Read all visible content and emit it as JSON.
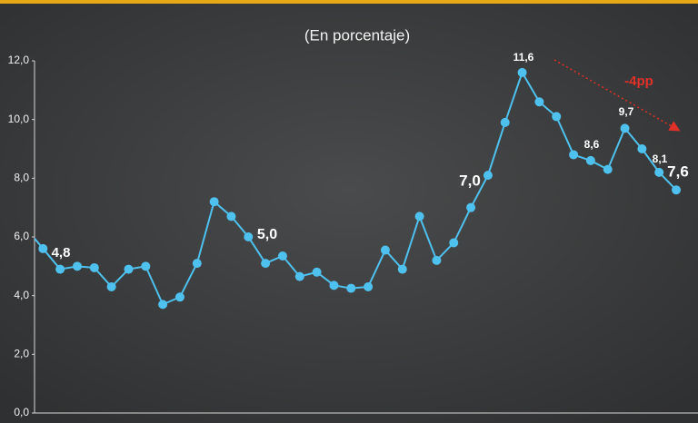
{
  "chart_data": {
    "type": "line",
    "subtitle": "(En porcentaje)",
    "categories": [
      null,
      null,
      null,
      null,
      null,
      null,
      null,
      null,
      null,
      null,
      null,
      null,
      null,
      null,
      null,
      null,
      null,
      null,
      null,
      null,
      null,
      null,
      null,
      null,
      null,
      null,
      null,
      null,
      null,
      null,
      null,
      null,
      null,
      null,
      null,
      null,
      null,
      null,
      null
    ],
    "series": [
      {
        "name": null,
        "color": "#4ec1ee",
        "values": [
          6.3,
          5.6,
          4.9,
          5.0,
          4.95,
          4.3,
          4.9,
          5.0,
          3.7,
          3.95,
          5.1,
          7.2,
          6.7,
          6.0,
          5.1,
          5.35,
          4.65,
          4.8,
          4.35,
          4.25,
          4.3,
          5.55,
          4.9,
          6.7,
          5.2,
          5.8,
          7.0,
          8.1,
          9.9,
          11.6,
          10.6,
          10.1,
          8.8,
          8.6,
          8.3,
          9.7,
          9.0,
          8.2,
          7.6
        ]
      }
    ],
    "ylim": [
      0,
      12
    ],
    "yticks": [
      {
        "value": 0,
        "label": "0,0"
      },
      {
        "value": 2,
        "label": "2,0"
      },
      {
        "value": 4,
        "label": "4,0"
      },
      {
        "value": 6,
        "label": "6,0"
      },
      {
        "value": 8,
        "label": "8,0"
      },
      {
        "value": 10,
        "label": "10,0"
      },
      {
        "value": 12,
        "label": "12,0"
      }
    ],
    "annotations": [
      {
        "text": "4,8"
      },
      {
        "text": "5,0"
      },
      {
        "text": "7,0"
      },
      {
        "text": "11,6"
      },
      {
        "text": "8,6"
      },
      {
        "text": "9,7"
      },
      {
        "text": "8,1"
      },
      {
        "text": "7,6"
      },
      {
        "text": "-4pp"
      }
    ]
  }
}
